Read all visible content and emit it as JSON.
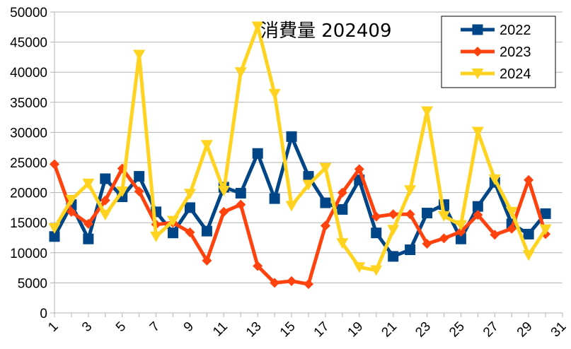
{
  "chart_data": {
    "type": "line",
    "title": "消費量 202409",
    "xlabel": "",
    "ylabel": "",
    "ylim": [
      0,
      50000
    ],
    "yticks": [
      0,
      5000,
      10000,
      15000,
      20000,
      25000,
      30000,
      35000,
      40000,
      45000,
      50000
    ],
    "xlim": [
      1,
      31
    ],
    "xticks": [
      1,
      3,
      5,
      7,
      9,
      11,
      13,
      15,
      17,
      19,
      21,
      23,
      25,
      27,
      29,
      31
    ],
    "grid": "horizontal",
    "legend": "top-right",
    "x": [
      1,
      2,
      3,
      4,
      5,
      6,
      7,
      8,
      9,
      10,
      11,
      12,
      13,
      14,
      15,
      16,
      17,
      18,
      19,
      20,
      21,
      22,
      23,
      24,
      25,
      26,
      27,
      28,
      29,
      30
    ],
    "series": [
      {
        "name": "2022",
        "color": "#004586",
        "marker": "square",
        "values": [
          12700,
          18000,
          12300,
          22300,
          19300,
          22700,
          16800,
          13300,
          17500,
          13600,
          20900,
          19900,
          26500,
          19000,
          29300,
          22700,
          18300,
          17200,
          22100,
          13300,
          9400,
          10500,
          16600,
          18000,
          12300,
          17700,
          21700,
          14800,
          13100,
          16500
        ]
      },
      {
        "name": "2023",
        "color": "#ff420e",
        "marker": "diamond",
        "values": [
          24700,
          16800,
          14800,
          18700,
          24000,
          20200,
          14700,
          15000,
          13400,
          8700,
          16800,
          18000,
          7800,
          5000,
          5300,
          4800,
          14500,
          20000,
          23900,
          16000,
          16400,
          16400,
          11500,
          12400,
          13500,
          16300,
          13000,
          14000,
          22100,
          13100
        ]
      },
      {
        "name": "2024",
        "color": "#ffd320",
        "marker": "triangle-down",
        "values": [
          14100,
          18800,
          21500,
          16300,
          20200,
          42900,
          12700,
          15300,
          19800,
          27900,
          20300,
          40000,
          47600,
          36400,
          17800,
          21300,
          24100,
          11600,
          7600,
          7100,
          13800,
          20400,
          33500,
          16100,
          14600,
          30100,
          22200,
          16800,
          9600,
          13900
        ]
      }
    ]
  }
}
